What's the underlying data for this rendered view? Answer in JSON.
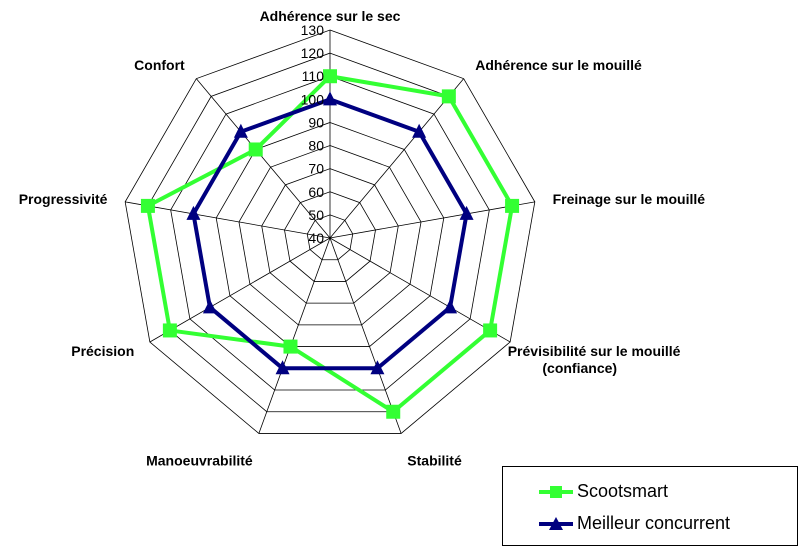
{
  "chart_data": {
    "type": "radar",
    "categories": [
      "Adhérence sur le sec",
      "Adhérence sur le mouillé",
      "Freinage sur le mouillé",
      "Prévisibilité sur le mouillé (confiance)",
      "Stabilité",
      "Manoeuvrabilité",
      "Précision",
      "Progressivité",
      "Confort"
    ],
    "category_lines": [
      [
        "Adhérence sur le sec"
      ],
      [
        "Adhérence sur le mouillé"
      ],
      [
        "Freinage sur le mouillé"
      ],
      [
        "Prévisibilité sur le mouillé",
        "(confiance)"
      ],
      [
        "Stabilité"
      ],
      [
        "Manoeuvrabilité"
      ],
      [
        "Précision"
      ],
      [
        "Progressivité"
      ],
      [
        "Confort"
      ]
    ],
    "rlim": [
      40,
      130
    ],
    "ticks": [
      40,
      50,
      60,
      70,
      80,
      90,
      100,
      110,
      120,
      130
    ],
    "series": [
      {
        "name": "Scootsmart",
        "color": "#33ff33",
        "marker": "square",
        "values": [
          110,
          120,
          120,
          120,
          120,
          90,
          120,
          120,
          90
        ]
      },
      {
        "name": "Meilleur concurrent",
        "color": "#000080",
        "marker": "triangle",
        "values": [
          100,
          100,
          100,
          100,
          100,
          100,
          100,
          100,
          100
        ]
      }
    ],
    "legend_position": "bottom-right",
    "grid": true
  }
}
